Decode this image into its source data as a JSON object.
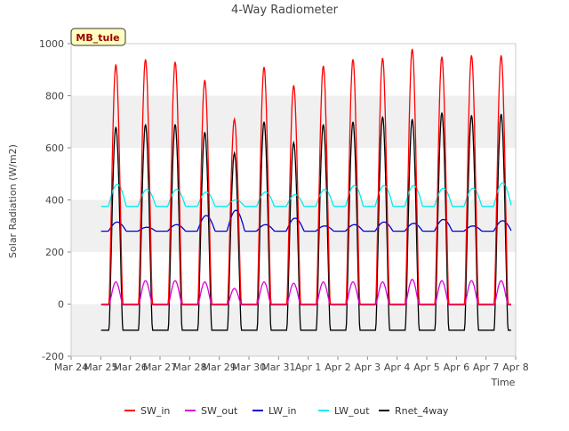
{
  "chart_data": {
    "type": "line",
    "title": "4-Way Radiometer",
    "xlabel": "Time",
    "ylabel": "Solar Radiation (W/m2)",
    "site_label": "MB_tule",
    "x_range": [
      0,
      15
    ],
    "ylim": [
      -200,
      1000
    ],
    "y_ticks": [
      -200,
      0,
      200,
      400,
      600,
      800,
      1000
    ],
    "x_tick_labels": [
      "Mar 24",
      "Mar 25",
      "Mar 26",
      "Mar 27",
      "Mar 28",
      "Mar 29",
      "Mar 30",
      "Mar 31",
      "Apr 1",
      "Apr 2",
      "Apr 3",
      "Apr 4",
      "Apr 5",
      "Apr 6",
      "Apr 7",
      "Apr 8"
    ],
    "grid": "horizontal bands",
    "legend_position": "bottom",
    "day_peaks": [
      {
        "day": "Mar 25",
        "SW_in": 920,
        "SW_out": 85,
        "LW_in": 315,
        "LW_out": 460,
        "Rnet_4way": 680
      },
      {
        "day": "Mar 26",
        "SW_in": 940,
        "SW_out": 90,
        "LW_in": 295,
        "LW_out": 440,
        "Rnet_4way": 690
      },
      {
        "day": "Mar 27",
        "SW_in": 930,
        "SW_out": 90,
        "LW_in": 305,
        "LW_out": 440,
        "Rnet_4way": 690
      },
      {
        "day": "Mar 28",
        "SW_in": 860,
        "SW_out": 85,
        "LW_in": 340,
        "LW_out": 430,
        "Rnet_4way": 660
      },
      {
        "day": "Mar 29",
        "SW_in": 710,
        "SW_out": 60,
        "LW_in": 360,
        "LW_out": 400,
        "Rnet_4way": 580
      },
      {
        "day": "Mar 30",
        "SW_in": 910,
        "SW_out": 85,
        "LW_in": 305,
        "LW_out": 430,
        "Rnet_4way": 700
      },
      {
        "day": "Mar 31",
        "SW_in": 840,
        "SW_out": 80,
        "LW_in": 330,
        "LW_out": 420,
        "Rnet_4way": 620
      },
      {
        "day": "Apr 1",
        "SW_in": 915,
        "SW_out": 85,
        "LW_in": 300,
        "LW_out": 440,
        "Rnet_4way": 690
      },
      {
        "day": "Apr 2",
        "SW_in": 940,
        "SW_out": 85,
        "LW_in": 305,
        "LW_out": 455,
        "Rnet_4way": 700
      },
      {
        "day": "Apr 3",
        "SW_in": 945,
        "SW_out": 85,
        "LW_in": 315,
        "LW_out": 455,
        "Rnet_4way": 720
      },
      {
        "day": "Apr 4",
        "SW_in": 980,
        "SW_out": 95,
        "LW_in": 310,
        "LW_out": 455,
        "Rnet_4way": 710
      },
      {
        "day": "Apr 5",
        "SW_in": 950,
        "SW_out": 90,
        "LW_in": 325,
        "LW_out": 445,
        "Rnet_4way": 735
      },
      {
        "day": "Apr 6",
        "SW_in": 955,
        "SW_out": 90,
        "LW_in": 300,
        "LW_out": 445,
        "Rnet_4way": 725
      },
      {
        "day": "Apr 7",
        "SW_in": 955,
        "SW_out": 90,
        "LW_in": 320,
        "LW_out": 465,
        "Rnet_4way": 730
      }
    ],
    "night_levels": {
      "SW_in": 0,
      "SW_out": -3,
      "LW_in": 280,
      "LW_out": 375,
      "Rnet_4way": -100
    },
    "series": [
      {
        "name": "SW_in",
        "color": "#ff0000"
      },
      {
        "name": "SW_out",
        "color": "#dd00dd"
      },
      {
        "name": "LW_in",
        "color": "#0000cc"
      },
      {
        "name": "LW_out",
        "color": "#00eeee"
      },
      {
        "name": "Rnet_4way",
        "color": "#000000"
      }
    ]
  }
}
